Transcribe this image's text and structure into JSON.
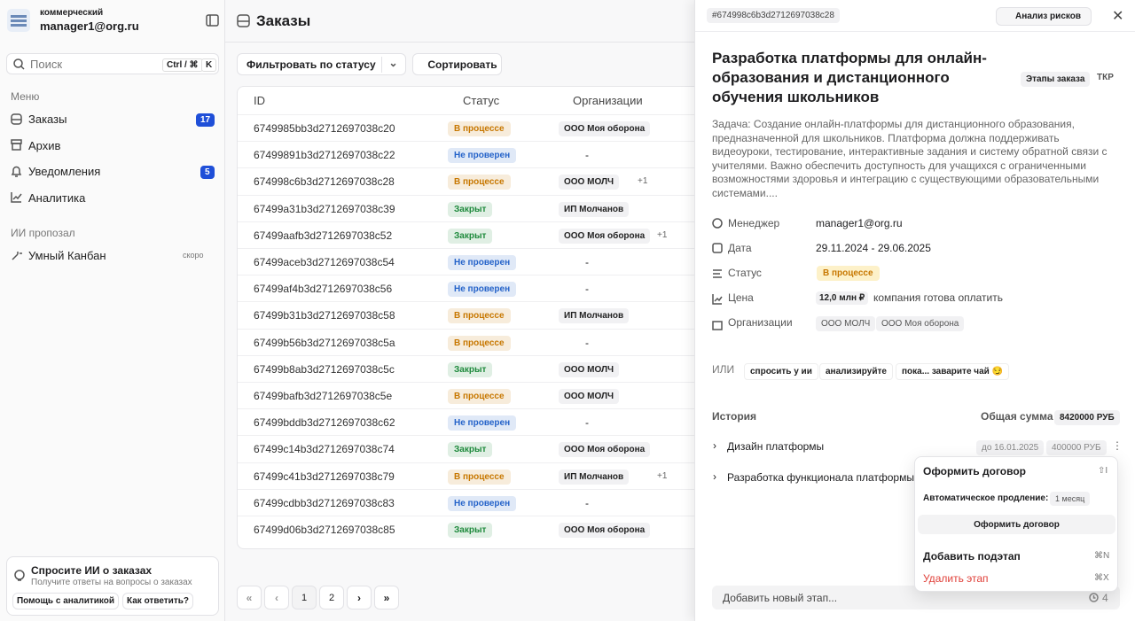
{
  "sidebar": {
    "workspace": "коммерческий",
    "user": "manager1@org.ru",
    "search": {
      "placeholder": "Поиск",
      "shortcut": [
        "Ctrl / ⌘",
        "K"
      ]
    },
    "menu_title": "Меню",
    "menu": [
      {
        "label": "Заказы",
        "badge": "17"
      },
      {
        "label": "Архив"
      },
      {
        "label": "Уведомления",
        "badge": "5"
      },
      {
        "label": "Аналитика"
      }
    ],
    "ai_title": "ИИ пропозал",
    "ai_items": [
      {
        "label": "Умный Канбан",
        "badge": "скоро"
      }
    ],
    "ai_card": {
      "title": "Спросите ИИ о заказах",
      "subtitle": "Получите ответы на вопросы о заказах",
      "buttons": [
        "Помощь с аналитикой",
        "Как ответить?"
      ]
    }
  },
  "main": {
    "title": "Заказы",
    "filter": "Фильтровать по статусу",
    "sort": "Сортировать",
    "table": {
      "columns": [
        "ID",
        "Статус",
        "Организации"
      ],
      "rows": [
        {
          "id": "6749985bb3d2712697038c20",
          "status": "В процессе",
          "color": "#c77700",
          "org": "ООО Моя оборона"
        },
        {
          "id": "67499891b3d2712697038c22",
          "status": "Не проверен",
          "color": "#2563c9",
          "org": "-"
        },
        {
          "id": "674998c6b3d2712697038c28",
          "status": "В процессе",
          "color": "#c77700",
          "org": "ООО МОЛЧ",
          "extra": "+1"
        },
        {
          "id": "67499a31b3d2712697038c39",
          "status": "Закрыт",
          "color": "#1e8a3c",
          "org": "ИП Молчанов"
        },
        {
          "id": "67499aafb3d2712697038c52",
          "status": "Закрыт",
          "color": "#1e8a3c",
          "org": "ООО Моя оборона",
          "extra": "+1"
        },
        {
          "id": "67499aceb3d2712697038c54",
          "status": "Не проверен",
          "color": "#2563c9",
          "org": "-"
        },
        {
          "id": "67499af4b3d2712697038c56",
          "status": "Не проверен",
          "color": "#2563c9",
          "org": "-"
        },
        {
          "id": "67499b31b3d2712697038c58",
          "status": "В процессе",
          "color": "#c77700",
          "org": "ИП Молчанов"
        },
        {
          "id": "67499b56b3d2712697038c5a",
          "status": "В процессе",
          "color": "#c77700",
          "org": "-"
        },
        {
          "id": "67499b8ab3d2712697038c5c",
          "status": "Закрыт",
          "color": "#1e8a3c",
          "org": "ООО МОЛЧ"
        },
        {
          "id": "67499bafb3d2712697038c5e",
          "status": "В процессе",
          "color": "#c77700",
          "org": "ООО МОЛЧ"
        },
        {
          "id": "67499bddb3d2712697038c62",
          "status": "Не проверен",
          "color": "#2563c9",
          "org": "-"
        },
        {
          "id": "67499c14b3d2712697038c74",
          "status": "Закрыт",
          "color": "#1e8a3c",
          "org": "ООО Моя оборона"
        },
        {
          "id": "67499c41b3d2712697038c79",
          "status": "В процессе",
          "color": "#c77700",
          "org": "ИП Молчанов",
          "extra": "+1"
        },
        {
          "id": "67499cdbb3d2712697038c83",
          "status": "Не проверен",
          "color": "#2563c9",
          "org": "-"
        },
        {
          "id": "67499d06b3d2712697038c85",
          "status": "Закрыт",
          "color": "#1e8a3c",
          "org": "ООО Моя оборона"
        }
      ]
    },
    "pages": [
      "1",
      "2"
    ]
  },
  "panel": {
    "id": "#674998c6b3d2712697038c28",
    "risk_button": "Анализ рисков",
    "title": "Разработка платформы для онлайн-образования и дистанционного обучения школьников",
    "tabs": [
      "Этапы заказа",
      "ТКР"
    ],
    "description": "Задача: Создание онлайн-платформы для дистанционного образования, предназначенной для школьников. Платформа должна поддерживать видеоуроки, тестирование, интерактивные задания и систему обратной связи с учителями. Важно обеспечить доступность для учащихся с ограниченными возможностями здоровья и интеграцию с существующими образовательными системами....",
    "fields": {
      "manager": {
        "label": "Менеджер",
        "value": "manager1@org.ru"
      },
      "date": {
        "label": "Дата",
        "value": "29.11.2024 - 29.06.2025"
      },
      "status": {
        "label": "Статус",
        "value": "В процессе"
      },
      "price": {
        "label": "Цена",
        "value": "12,0 млн ₽",
        "note": "компания готова оплатить"
      },
      "orgs": {
        "label": "Организации",
        "values": [
          "ООО МОЛЧ",
          "ООО Моя оборона"
        ]
      }
    },
    "or_label": "ИЛИ",
    "ai_chips": [
      "спросить у ии",
      "анализируйте",
      "пока... заварите чай 😏"
    ],
    "history": "История",
    "total_label": "Общая сумма",
    "total_value": "8420000 РУБ",
    "stages": [
      {
        "name": "Дизайн платформы",
        "deadline": "до 16.01.2025",
        "amount": "400000 РУБ"
      },
      {
        "name": "Разработка функционала платформы"
      }
    ],
    "add_stage": "Добавить новый этап...",
    "history_count": "4"
  },
  "context_menu": {
    "contract": {
      "label": "Оформить договор",
      "shortcut": "⇧I"
    },
    "renewal_label": "Автоматическое продление:",
    "renewal_value": "1 месяц",
    "contract_button": "Оформить договор",
    "add_substage": {
      "label": "Добавить подэтап",
      "shortcut": "⌘N"
    },
    "delete_stage": {
      "label": "Удалить этап",
      "shortcut": "⌘X"
    }
  }
}
